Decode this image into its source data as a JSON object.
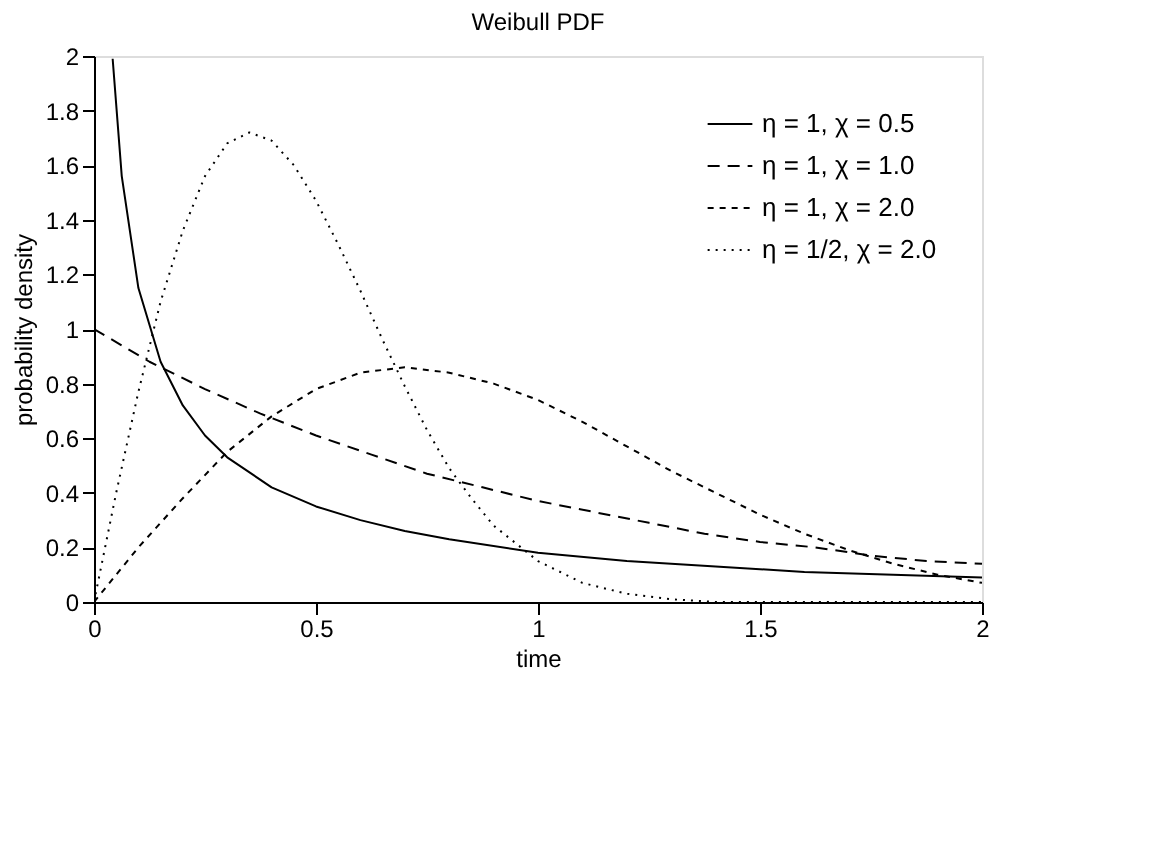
{
  "chart_data": {
    "type": "line",
    "title": "Weibull PDF",
    "xlabel": "time",
    "ylabel": "probability density",
    "xlim": [
      0,
      2
    ],
    "ylim": [
      0,
      2
    ],
    "xticks": [
      0,
      0.5,
      1,
      1.5,
      2
    ],
    "yticks": [
      0,
      0.2,
      0.4,
      0.6,
      0.8,
      1,
      1.2,
      1.4,
      1.6,
      1.8,
      2
    ],
    "grid": false,
    "legend": "top right",
    "marker": "none",
    "series": [
      {
        "name": "η = 1, χ = 0.5",
        "color": "#000000",
        "line_style": "solid",
        "x": [
          0.042,
          0.0625,
          0.1,
          0.15,
          0.2,
          0.25,
          0.3,
          0.4,
          0.5,
          0.6,
          0.7,
          0.8,
          1.0,
          1.2,
          1.4,
          1.6,
          1.8,
          2.0
        ],
        "values": [
          1.99,
          1.56,
          1.15,
          0.88,
          0.72,
          0.61,
          0.53,
          0.42,
          0.35,
          0.3,
          0.26,
          0.23,
          0.18,
          0.15,
          0.13,
          0.11,
          0.1,
          0.09
        ]
      },
      {
        "name": "η = 1, χ = 1.0",
        "color": "#000000",
        "line_style": "dashed",
        "x": [
          0,
          0.125,
          0.25,
          0.375,
          0.5,
          0.625,
          0.75,
          0.875,
          1,
          1.125,
          1.25,
          1.375,
          1.5,
          1.625,
          1.75,
          1.875,
          2
        ],
        "values": [
          1,
          0.88,
          0.78,
          0.69,
          0.61,
          0.54,
          0.47,
          0.42,
          0.37,
          0.33,
          0.29,
          0.25,
          0.22,
          0.2,
          0.17,
          0.15,
          0.14
        ]
      },
      {
        "name": "η = 1, χ = 2.0",
        "color": "#000000",
        "line_style": "dashed",
        "x": [
          0,
          0.1,
          0.2,
          0.3,
          0.4,
          0.5,
          0.6,
          0.7,
          0.8,
          0.9,
          1,
          1.1,
          1.2,
          1.3,
          1.4,
          1.5,
          1.6,
          1.7,
          1.8,
          1.9,
          2
        ],
        "values": [
          0,
          0.2,
          0.38,
          0.55,
          0.68,
          0.78,
          0.84,
          0.86,
          0.84,
          0.8,
          0.74,
          0.66,
          0.57,
          0.48,
          0.4,
          0.32,
          0.25,
          0.19,
          0.14,
          0.1,
          0.07
        ]
      },
      {
        "name": "η = 1/2, χ = 2.0",
        "color": "#000000",
        "line_style": "dotted",
        "x": [
          0,
          0.05,
          0.1,
          0.15,
          0.2,
          0.25,
          0.3,
          0.35,
          0.4,
          0.45,
          0.5,
          0.55,
          0.6,
          0.65,
          0.7,
          0.75,
          0.8,
          0.85,
          0.9,
          1.0,
          1.1,
          1.2,
          1.3,
          1.4,
          1.5,
          2
        ],
        "values": [
          0,
          0.4,
          0.77,
          1.1,
          1.36,
          1.56,
          1.68,
          1.72,
          1.69,
          1.6,
          1.47,
          1.31,
          1.14,
          0.96,
          0.79,
          0.63,
          0.49,
          0.38,
          0.28,
          0.15,
          0.07,
          0.03,
          0.01,
          0,
          0,
          0
        ]
      }
    ]
  }
}
